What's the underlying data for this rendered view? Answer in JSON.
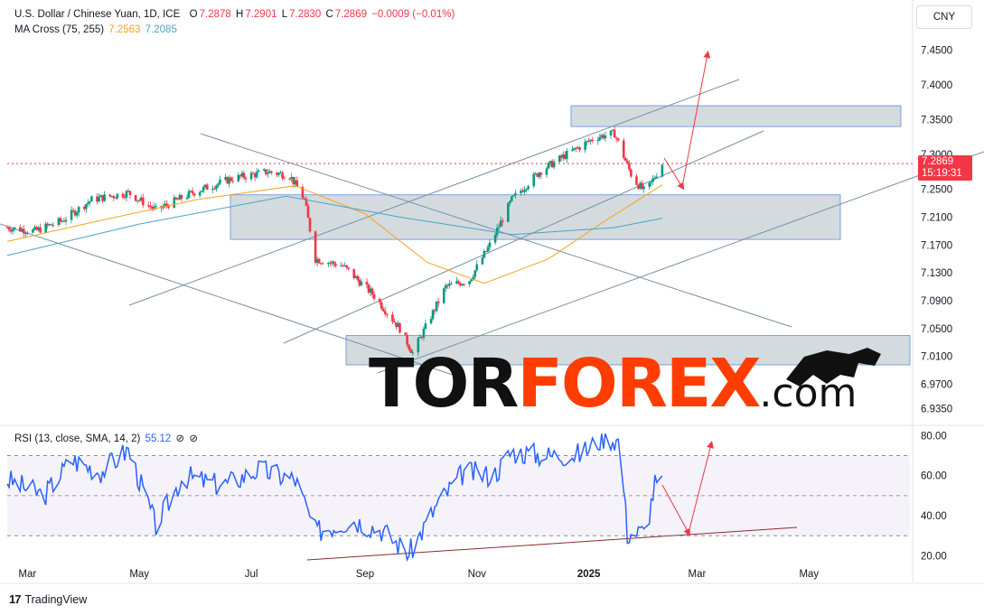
{
  "header": {
    "symbol": "U.S. Dollar / Chinese Yuan, 1D, ICE",
    "open_label": "O",
    "open": "7.2878",
    "high_label": "H",
    "high": "7.2901",
    "low_label": "L",
    "low": "7.2830",
    "close_label": "C",
    "close": "7.2869",
    "change": "−0.0009 (−0.01%)",
    "ma_label": "MA Cross (75, 255)",
    "ma75_value": "7.2563",
    "ma255_value": "7.2085"
  },
  "currency": "CNY",
  "last_price": "7.2869",
  "countdown": "15:19:31",
  "rsi_header": {
    "label": "RSI (13, close, SMA, 14, 2)",
    "value": "55.12",
    "extra1": "⊘",
    "extra2": "⊘"
  },
  "watermark": {
    "part1": "TOR",
    "part2": "FOREX",
    "part3": ".com"
  },
  "brand": "TradingView",
  "colors": {
    "up": "#089981",
    "down": "#f23645",
    "ma75": "#f7a21b",
    "ma255": "#4aa3c4",
    "rsi": "#2962ff",
    "zone": "#b0bec5"
  },
  "chart_data": [
    {
      "type": "candlestick",
      "title": "U.S. Dollar / Chinese Yuan, 1D, ICE",
      "ylim": [
        6.915,
        7.475
      ],
      "y_ticks": [
        "7.4500",
        "7.4000",
        "7.3500",
        "7.3000",
        "7.2500",
        "7.2100",
        "7.1700",
        "7.1300",
        "7.0900",
        "7.0500",
        "7.0100",
        "6.9700",
        "6.9350"
      ],
      "x_ticks": [
        "Mar",
        "May",
        "Jul",
        "Sep",
        "Nov",
        "2025",
        "Mar",
        "May"
      ],
      "approx_close_path": [
        {
          "date": "2024-02-19",
          "value": 7.195
        },
        {
          "date": "2024-03-05",
          "value": 7.19
        },
        {
          "date": "2024-03-20",
          "value": 7.205
        },
        {
          "date": "2024-04-05",
          "value": 7.235
        },
        {
          "date": "2024-04-25",
          "value": 7.245
        },
        {
          "date": "2024-05-10",
          "value": 7.22
        },
        {
          "date": "2024-05-30",
          "value": 7.245
        },
        {
          "date": "2024-06-20",
          "value": 7.265
        },
        {
          "date": "2024-07-10",
          "value": 7.275
        },
        {
          "date": "2024-07-22",
          "value": 7.27
        },
        {
          "date": "2024-07-30",
          "value": 7.235
        },
        {
          "date": "2024-08-05",
          "value": 7.15
        },
        {
          "date": "2024-08-20",
          "value": 7.14
        },
        {
          "date": "2024-09-05",
          "value": 7.1
        },
        {
          "date": "2024-09-20",
          "value": 7.05
        },
        {
          "date": "2024-09-27",
          "value": 7.015
        },
        {
          "date": "2024-10-15",
          "value": 7.11
        },
        {
          "date": "2024-10-28",
          "value": 7.12
        },
        {
          "date": "2024-11-08",
          "value": 7.17
        },
        {
          "date": "2024-11-20",
          "value": 7.235
        },
        {
          "date": "2024-12-05",
          "value": 7.275
        },
        {
          "date": "2024-12-20",
          "value": 7.3
        },
        {
          "date": "2025-01-05",
          "value": 7.325
        },
        {
          "date": "2025-01-15",
          "value": 7.33
        },
        {
          "date": "2025-01-25",
          "value": 7.265
        },
        {
          "date": "2025-02-01",
          "value": 7.245
        },
        {
          "date": "2025-02-10",
          "value": 7.2869
        }
      ],
      "ma75_path": [
        {
          "date": "2024-02-19",
          "value": 7.175
        },
        {
          "date": "2024-04-01",
          "value": 7.2
        },
        {
          "date": "2024-06-01",
          "value": 7.235
        },
        {
          "date": "2024-07-25",
          "value": 7.255
        },
        {
          "date": "2024-09-01",
          "value": 7.215
        },
        {
          "date": "2024-10-05",
          "value": 7.145
        },
        {
          "date": "2024-11-05",
          "value": 7.115
        },
        {
          "date": "2024-12-10",
          "value": 7.15
        },
        {
          "date": "2025-01-10",
          "value": 7.205
        },
        {
          "date": "2025-02-10",
          "value": 7.2563
        }
      ],
      "ma255_path": [
        {
          "date": "2024-02-19",
          "value": 7.155
        },
        {
          "date": "2024-05-01",
          "value": 7.2
        },
        {
          "date": "2024-07-20",
          "value": 7.24
        },
        {
          "date": "2024-09-20",
          "value": 7.21
        },
        {
          "date": "2024-11-20",
          "value": 7.185
        },
        {
          "date": "2025-01-15",
          "value": 7.195
        },
        {
          "date": "2025-02-10",
          "value": 7.2085
        }
      ],
      "zones": [
        [
          7.34,
          7.37
        ],
        [
          7.178,
          7.242
        ],
        [
          6.998,
          7.04
        ]
      ]
    },
    {
      "type": "line",
      "title": "RSI (13, close, SMA, 14, 2)",
      "ylim": [
        17,
        82
      ],
      "y_ticks": [
        "80.00",
        "60.00",
        "40.00",
        "20.00"
      ],
      "levels": [
        70,
        50,
        30
      ],
      "rsi_path": [
        {
          "date": "2024-02-19",
          "value": 58
        },
        {
          "date": "2024-03-10",
          "value": 50
        },
        {
          "date": "2024-03-25",
          "value": 68
        },
        {
          "date": "2024-04-10",
          "value": 62
        },
        {
          "date": "2024-04-25",
          "value": 73
        },
        {
          "date": "2024-05-10",
          "value": 35
        },
        {
          "date": "2024-05-25",
          "value": 60
        },
        {
          "date": "2024-06-15",
          "value": 55
        },
        {
          "date": "2024-07-05",
          "value": 63
        },
        {
          "date": "2024-07-25",
          "value": 58
        },
        {
          "date": "2024-08-05",
          "value": 32
        },
        {
          "date": "2024-08-25",
          "value": 38
        },
        {
          "date": "2024-09-10",
          "value": 33
        },
        {
          "date": "2024-09-25",
          "value": 21
        },
        {
          "date": "2024-10-10",
          "value": 45
        },
        {
          "date": "2024-10-25",
          "value": 62
        },
        {
          "date": "2024-11-10",
          "value": 60
        },
        {
          "date": "2024-11-20",
          "value": 72
        },
        {
          "date": "2024-12-10",
          "value": 70
        },
        {
          "date": "2024-12-28",
          "value": 71
        },
        {
          "date": "2025-01-10",
          "value": 80
        },
        {
          "date": "2025-01-18",
          "value": 77
        },
        {
          "date": "2025-01-22",
          "value": 31
        },
        {
          "date": "2025-02-01",
          "value": 32
        },
        {
          "date": "2025-02-06",
          "value": 56
        },
        {
          "date": "2025-02-10",
          "value": 55.12
        }
      ]
    }
  ]
}
